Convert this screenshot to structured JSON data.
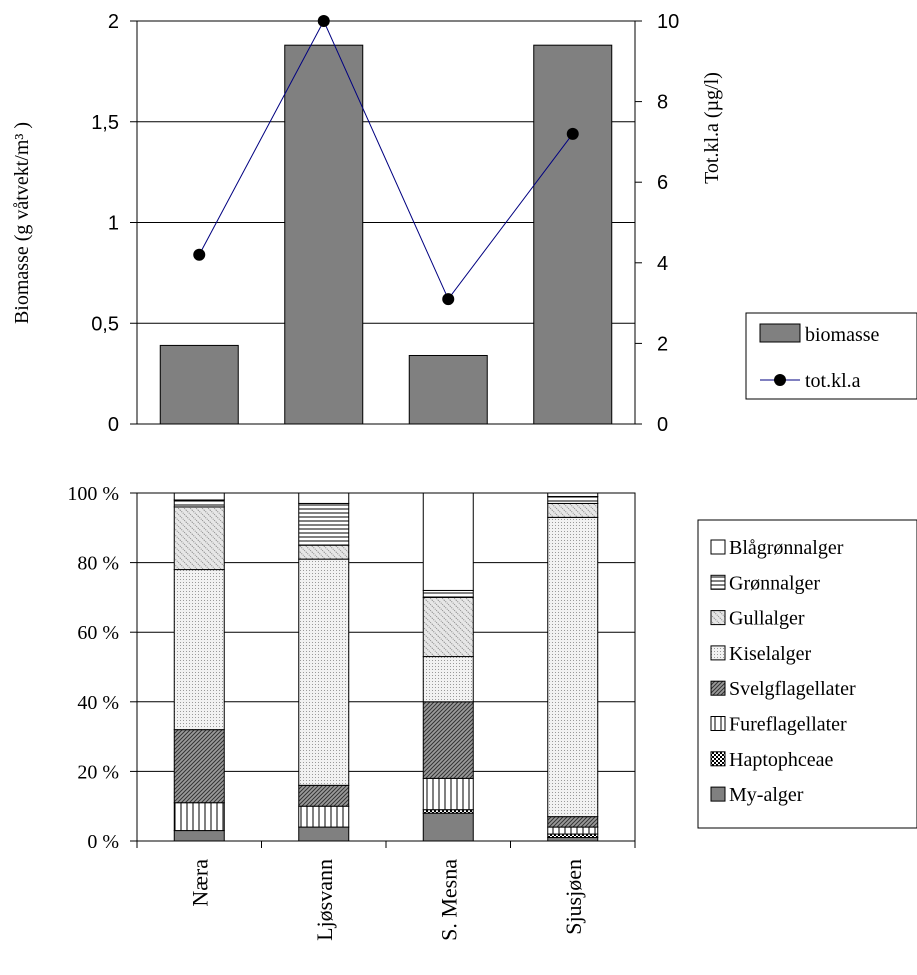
{
  "colors": {
    "bar_fill": "#808080",
    "line": "#000080",
    "marker": "#000000",
    "grid": "#000000",
    "frame": "#000000"
  },
  "chart_data": [
    {
      "type": "bar+line",
      "categories": [
        "Næra",
        "Ljøsvann",
        "S. Mesna",
        "Sjusjøen"
      ],
      "ylabel": "Biomasse (g våtvekt/m³ )",
      "y2label": "Tot.kl.a (µg/l)",
      "ylim": [
        0,
        2
      ],
      "y2lim": [
        0,
        10
      ],
      "yticks": [
        "0",
        "0,5",
        "1",
        "1,5",
        "2"
      ],
      "y2ticks": [
        "0",
        "2",
        "4",
        "6",
        "8",
        "10"
      ],
      "grid": true,
      "legend_position": "right",
      "series": [
        {
          "name": "biomasse",
          "kind": "bar",
          "axis": "left",
          "values": [
            0.39,
            1.88,
            0.34,
            1.88
          ]
        },
        {
          "name": "tot.kl.a",
          "kind": "line",
          "axis": "right",
          "values": [
            4.2,
            10.0,
            3.1,
            7.2
          ]
        }
      ]
    },
    {
      "type": "bar",
      "stacked": "percent",
      "categories": [
        "Næra",
        "Ljøsvann",
        "S. Mesna",
        "Sjusjøen"
      ],
      "ylim": [
        0,
        100
      ],
      "yticks": [
        "0 %",
        "20 %",
        "40 %",
        "60 %",
        "80 %",
        "100 %"
      ],
      "grid": true,
      "legend_position": "right",
      "series": [
        {
          "name": "My-alger",
          "pattern": "solid-gray",
          "values": [
            3,
            4,
            8,
            1
          ]
        },
        {
          "name": "Haptophceae",
          "pattern": "checker",
          "values": [
            0,
            0,
            1,
            1
          ]
        },
        {
          "name": "Fureflagellater",
          "pattern": "vertical-lines",
          "values": [
            8,
            6,
            9,
            2
          ]
        },
        {
          "name": "Svelgflagellater",
          "pattern": "dark-diagonal",
          "values": [
            21,
            6,
            22,
            3
          ]
        },
        {
          "name": "Kiselalger",
          "pattern": "light-dots",
          "values": [
            46,
            65,
            13,
            86
          ]
        },
        {
          "name": "Gullalger",
          "pattern": "diagonal-dots",
          "values": [
            18,
            4,
            17,
            4
          ]
        },
        {
          "name": "Grønnalger",
          "pattern": "horizontal-lines",
          "values": [
            2,
            12,
            2,
            2
          ]
        },
        {
          "name": "Blågrønnalger",
          "pattern": "white",
          "values": [
            2,
            3,
            28,
            1
          ]
        }
      ]
    }
  ]
}
